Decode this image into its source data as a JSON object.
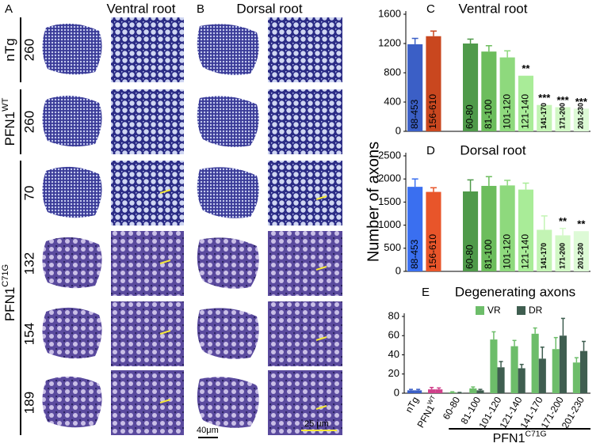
{
  "figure": {
    "panel_a": {
      "letter": "A",
      "title": "Ventral root"
    },
    "panel_b": {
      "letter": "B",
      "title": "Dorsal root"
    },
    "groups": [
      {
        "text": "nTg"
      },
      {
        "text": "PFN1",
        "sup": "WT"
      },
      {
        "text": "PFN1",
        "sup": "C71G"
      }
    ],
    "rows": [
      "260",
      "260",
      "70",
      "132",
      "154",
      "189"
    ],
    "scale_bars": [
      "40μm",
      "25 μm"
    ],
    "shared_y_label": "Number of axons"
  },
  "chart_data": [
    {
      "type": "bar",
      "panel_label": "C",
      "title": "Ventral root",
      "categories": [
        "88-453",
        "156-610",
        "60-80",
        "81-100",
        "101-120",
        "121-140",
        "141-170",
        "171-200",
        "201-230"
      ],
      "values": [
        1190,
        1300,
        1200,
        1090,
        1010,
        760,
        360,
        330,
        310
      ],
      "errors": [
        80,
        70,
        60,
        80,
        90,
        0,
        0,
        0,
        0
      ],
      "annotations": [
        null,
        null,
        null,
        null,
        null,
        "**",
        "***",
        "***",
        "***"
      ],
      "colors": [
        "#3b5fc6",
        "#c9471f",
        "#4f9a4a",
        "#6cbd5c",
        "#8ed97d",
        "#a9ec98",
        "#c3f4b4",
        "#d2f8c6",
        "#ddfad6"
      ],
      "ylim": [
        0,
        1600
      ],
      "yticks": [
        0,
        400,
        800,
        1200,
        1600
      ]
    },
    {
      "type": "bar",
      "panel_label": "D",
      "title": "Dorsal root",
      "categories": [
        "88-453",
        "156-610",
        "60-80",
        "81-100",
        "101-120",
        "121-140",
        "141-170",
        "171-200",
        "201-230"
      ],
      "values": [
        1830,
        1720,
        1730,
        1850,
        1860,
        1770,
        900,
        780,
        870
      ],
      "errors": [
        170,
        90,
        250,
        200,
        110,
        140,
        300,
        150,
        0
      ],
      "annotations": [
        null,
        null,
        null,
        null,
        null,
        null,
        null,
        "**",
        "**"
      ],
      "colors": [
        "#3a6ff0",
        "#e8552a",
        "#4f9a4a",
        "#6cbd5c",
        "#8ed97d",
        "#a9ec98",
        "#c3f4b4",
        "#d2f8c6",
        "#ddfad6"
      ],
      "ylim": [
        0,
        2500
      ],
      "yticks": [
        0,
        500,
        1000,
        1500,
        2000,
        2500
      ]
    },
    {
      "type": "grouped_bar",
      "panel_label": "E",
      "title": "Degenerating axons",
      "categories": [
        "nTg",
        {
          "text": "PFN1",
          "sup": "WT"
        },
        "60-80",
        "81-100",
        "101-120",
        "121-140",
        "141-170",
        "171-200",
        "201-230"
      ],
      "group_label": {
        "text": "PFN1",
        "sup": "C71G"
      },
      "series": [
        {
          "name": "VR",
          "color": "#6dbd6a",
          "colors": [
            "#3b5fc6",
            "#d0408a",
            "#6dbd6a",
            "#6dbd6a",
            "#6dbd6a",
            "#6dbd6a",
            "#6dbd6a",
            "#6dbd6a",
            "#6dbd6a"
          ],
          "values": [
            3,
            4,
            1,
            5,
            56,
            49,
            62,
            46,
            32
          ],
          "errors": [
            1,
            2,
            0.5,
            1.5,
            8,
            6,
            6,
            12,
            5
          ]
        },
        {
          "name": "DR",
          "color": "#3f5e50",
          "colors": [
            "#3b5fc6",
            "#d0408a",
            "#3f5e50",
            "#3f5e50",
            "#3f5e50",
            "#3f5e50",
            "#3f5e50",
            "#3f5e50",
            "#3f5e50"
          ],
          "values": [
            3,
            4,
            0.5,
            3,
            27,
            26,
            36,
            60,
            44
          ],
          "errors": [
            1,
            1.5,
            0.3,
            1,
            6,
            4,
            12,
            18,
            10
          ]
        }
      ],
      "ylim": [
        0,
        80
      ],
      "yticks": [
        0,
        20,
        40,
        60,
        80
      ]
    }
  ]
}
